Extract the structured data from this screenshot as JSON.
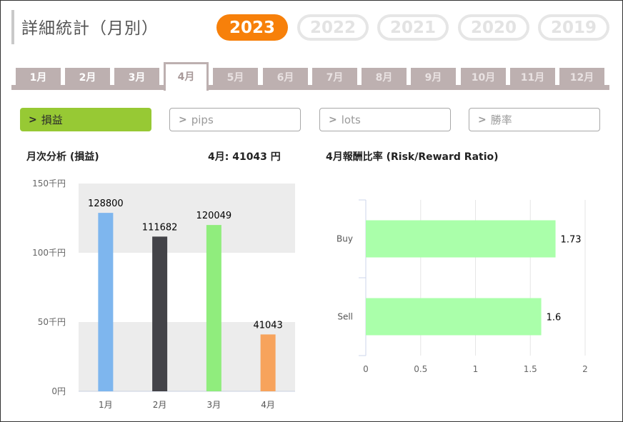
{
  "header": {
    "title": "詳細統計（月別）",
    "years": [
      {
        "label": "2023",
        "active": true
      },
      {
        "label": "2022",
        "active": false
      },
      {
        "label": "2021",
        "active": false
      },
      {
        "label": "2020",
        "active": false
      },
      {
        "label": "2019",
        "active": false
      }
    ]
  },
  "months": [
    {
      "label": "1月",
      "state": "past"
    },
    {
      "label": "2月",
      "state": "past"
    },
    {
      "label": "3月",
      "state": "past"
    },
    {
      "label": "4月",
      "state": "active"
    },
    {
      "label": "5月",
      "state": "future"
    },
    {
      "label": "6月",
      "state": "future"
    },
    {
      "label": "7月",
      "state": "future"
    },
    {
      "label": "8月",
      "state": "future"
    },
    {
      "label": "9月",
      "state": "future"
    },
    {
      "label": "10月",
      "state": "future"
    },
    {
      "label": "11月",
      "state": "future"
    },
    {
      "label": "12月",
      "state": "future"
    }
  ],
  "metrics": [
    {
      "label": "損益",
      "active": true
    },
    {
      "label": "pips",
      "active": false
    },
    {
      "label": "lots",
      "active": false
    },
    {
      "label": "勝率",
      "active": false
    }
  ],
  "colors": {
    "accent": "#f7800a",
    "metric_active": "#97c934",
    "tab": "#bdb0b0",
    "rr_bar": "#aaffaa"
  },
  "monthly_panel": {
    "heading": "月次分析 (損益)",
    "current_summary": "4月:  41043 円"
  },
  "rr_panel": {
    "heading": "4月報酬比率 (Risk/Reward Ratio)"
  },
  "chart_data": [
    {
      "type": "bar",
      "categories": [
        "1月",
        "2月",
        "3月",
        "4月"
      ],
      "values": [
        128800,
        111682,
        120049,
        41043
      ],
      "colors": [
        "#7eb6ee",
        "#434348",
        "#90ed7d",
        "#f7a35c"
      ],
      "y_ticks": [
        0,
        50000,
        100000,
        150000
      ],
      "y_tick_labels": [
        "0円",
        "50千円",
        "100千円",
        "150千円"
      ],
      "ylim": [
        0,
        150000
      ],
      "data_labels": [
        "128800",
        "111682",
        "120049",
        "41043"
      ],
      "grid": "alternating bands"
    },
    {
      "type": "bar",
      "orientation": "horizontal",
      "categories": [
        "Buy",
        "Sell"
      ],
      "values": [
        1.73,
        1.6
      ],
      "data_labels": [
        "1.73",
        "1.6"
      ],
      "color": "#aaffaa",
      "x_ticks": [
        0,
        0.5,
        1,
        1.5,
        2
      ],
      "x_tick_labels": [
        "0",
        "0.5",
        "1",
        "1.5",
        "2"
      ],
      "xlim": [
        0,
        2
      ],
      "grid": "vertical lines"
    }
  ]
}
